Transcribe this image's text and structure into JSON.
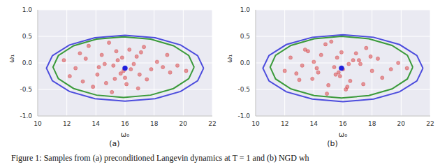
{
  "chart_data": [
    {
      "type": "scatter",
      "label": "(a)",
      "x_label": "ω₀",
      "y_label": "ω₁",
      "xlim": [
        10,
        22
      ],
      "ylim": [
        -1.0,
        1.0
      ],
      "xticks": [
        10,
        12,
        14,
        16,
        18,
        20,
        22
      ],
      "yticks": [
        {
          "value": -1.0,
          "label": "-1.0"
        },
        {
          "value": -0.5,
          "label": "-0.5"
        },
        {
          "value": 0.0,
          "label": "0.0"
        },
        {
          "value": 0.5,
          "label": "0.5"
        },
        {
          "value": 1.0,
          "label": "1.0"
        }
      ],
      "grid": true,
      "series": [
        {
          "type": "scatter",
          "marker": "circle",
          "color": "#d62728",
          "x": [
            15.2,
            16.8,
            14.1,
            17.5,
            13.3,
            15.9,
            18.2,
            12.6,
            16.3,
            14.7,
            19.1,
            15.5,
            13.8,
            17.1,
            16.0,
            14.4,
            18.6,
            12.2,
            15.1,
            16.6,
            13.5,
            17.8,
            14.9,
            16.1,
            19.6,
            11.8,
            15.7,
            14.2,
            17.3,
            15.4,
            13.1,
            16.9,
            18.9,
            14.6,
            15.8,
            12.9,
            17.0,
            15.3,
            16.4,
            20.2
          ],
          "y": [
            -0.05,
            0.12,
            -0.22,
            -0.31,
            0.08,
            -0.15,
            0.02,
            -0.1,
            0.25,
            -0.38,
            -0.18,
            0.05,
            -0.45,
            0.2,
            -0.28,
            0.15,
            -0.08,
            -0.25,
            -0.55,
            -0.02,
            0.32,
            -0.12,
            0.38,
            -0.4,
            -0.05,
            0.05,
            -0.2,
            -0.08,
            0.3,
            0.22,
            -0.35,
            -0.48,
            0.15,
            -0.02,
            0.1,
            0.18,
            -0.22,
            -0.3,
            -0.12,
            -0.15
          ]
        },
        {
          "type": "line",
          "line_style": "solid",
          "color": "#4c4cdd",
          "x": [
            21.4,
            20.99,
            19.82,
            18.07,
            16,
            13.93,
            12.18,
            11.01,
            10.6,
            11.01,
            12.18,
            13.93,
            16,
            18.07,
            19.82,
            20.99,
            21.4
          ],
          "y": [
            -0.1,
            0.137,
            0.338,
            0.473,
            0.52,
            0.473,
            0.338,
            0.137,
            -0.1,
            -0.337,
            -0.538,
            -0.673,
            -0.72,
            -0.673,
            -0.538,
            -0.337,
            -0.1
          ]
        },
        {
          "type": "line",
          "line_style": "solid",
          "color": "#3a9a3a",
          "x": [
            20.75,
            20.38,
            19.33,
            17.76,
            15.9,
            14.04,
            12.47,
            11.42,
            11.05,
            11.42,
            12.47,
            14.04,
            15.9,
            17.76,
            19.33,
            20.38,
            20.75
          ],
          "y": [
            -0.08,
            0.138,
            0.323,
            0.447,
            0.49,
            0.447,
            0.323,
            0.138,
            -0.08,
            -0.298,
            -0.483,
            -0.607,
            -0.65,
            -0.607,
            -0.483,
            -0.298,
            -0.08
          ]
        },
        {
          "type": "scatter",
          "marker": "circle",
          "color": "#2020dd",
          "x": [
            16.0
          ],
          "y": [
            -0.1
          ]
        }
      ]
    },
    {
      "type": "scatter",
      "label": "(b)",
      "x_label": "ω₀",
      "y_label": "ω₁",
      "xlim": [
        10,
        22
      ],
      "ylim": [
        -1.0,
        1.0
      ],
      "xticks": [
        10,
        12,
        14,
        16,
        18,
        20,
        22
      ],
      "yticks": [
        {
          "value": -1.0,
          "label": "-1.0"
        },
        {
          "value": -0.5,
          "label": "-0.5"
        },
        {
          "value": 0.0,
          "label": "0.0"
        },
        {
          "value": 0.5,
          "label": "0.5"
        },
        {
          "value": 1.0,
          "label": "1.0"
        }
      ],
      "grid": true,
      "series": [
        {
          "type": "scatter",
          "marker": "circle",
          "color": "#d62728",
          "x": [
            15.6,
            14.3,
            17.2,
            13.6,
            16.5,
            18.4,
            12.8,
            15.0,
            16.9,
            14.0,
            19.3,
            15.8,
            13.2,
            17.6,
            16.2,
            14.8,
            18.0,
            12.4,
            15.4,
            16.7,
            13.9,
            17.4,
            14.5,
            16.0,
            19.8,
            12.0,
            15.2,
            14.9,
            17.9,
            15.7,
            13.4,
            16.4,
            18.7,
            14.2,
            15.9,
            13.0,
            17.1,
            15.5,
            16.3,
            20.4
          ],
          "y": [
            0.1,
            -0.18,
            -0.02,
            0.22,
            -0.34,
            0.08,
            -0.2,
            -0.42,
            0.18,
            0.02,
            -0.12,
            -0.25,
            -0.05,
            0.28,
            -0.5,
            0.35,
            -0.15,
            0.1,
            -0.08,
            0.05,
            -0.3,
            -0.4,
            0.15,
            -0.12,
            0.0,
            -0.15,
            0.4,
            -0.58,
            0.12,
            -0.18,
            0.25,
            -0.02,
            -0.28,
            -0.1,
            0.2,
            -0.32,
            0.05,
            -0.22,
            -0.45,
            -0.1
          ]
        },
        {
          "type": "line",
          "line_style": "solid",
          "color": "#4c4cdd",
          "x": [
            21.5,
            21.08,
            19.89,
            18.11,
            16.0,
            13.89,
            12.11,
            10.92,
            10.5,
            10.92,
            12.11,
            13.89,
            16.0,
            18.11,
            19.89,
            21.08,
            21.5
          ],
          "y": [
            -0.1,
            0.14,
            0.345,
            0.482,
            0.53,
            0.482,
            0.345,
            0.14,
            -0.1,
            -0.34,
            -0.545,
            -0.682,
            -0.73,
            -0.682,
            -0.545,
            -0.34,
            -0.1
          ]
        },
        {
          "type": "line",
          "line_style": "solid",
          "color": "#3a9a3a",
          "x": [
            20.8,
            20.43,
            19.37,
            17.78,
            15.9,
            14.02,
            12.43,
            11.37,
            11.0,
            11.37,
            12.43,
            14.02,
            15.9,
            17.78,
            19.37,
            20.43,
            20.8
          ],
          "y": [
            -0.08,
            0.142,
            0.33,
            0.455,
            0.5,
            0.455,
            0.33,
            0.142,
            -0.08,
            -0.302,
            -0.49,
            -0.615,
            -0.66,
            -0.615,
            -0.49,
            -0.302,
            -0.08
          ]
        },
        {
          "type": "scatter",
          "marker": "circle",
          "color": "#2020dd",
          "x": [
            15.9
          ],
          "y": [
            -0.1
          ]
        }
      ]
    }
  ],
  "caption": "Figure 1: Samples from (a) preconditioned Langevin dynamics at T = 1 and (b) NGD wh"
}
